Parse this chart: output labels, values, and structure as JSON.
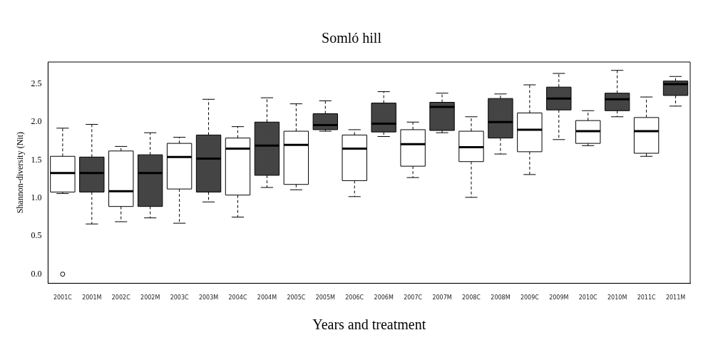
{
  "chart_data": {
    "type": "box",
    "title": "Somló hill",
    "xlabel": "Years and treatment",
    "ylabel": "Shannon-diversity (Nit)",
    "categories": [
      "2001C",
      "2001M",
      "2002C",
      "2002M",
      "2003C",
      "2003M",
      "2004C",
      "2004M",
      "2005C",
      "2005M",
      "2006C",
      "2006M",
      "2007C",
      "2007M",
      "2008C",
      "2008M",
      "2009C",
      "2009M",
      "2010C",
      "2010M",
      "2011C",
      "2011M"
    ],
    "colors": [
      "#ffffff",
      "#444444",
      "#ffffff",
      "#444444",
      "#ffffff",
      "#444444",
      "#ffffff",
      "#444444",
      "#ffffff",
      "#444444",
      "#ffffff",
      "#444444",
      "#ffffff",
      "#444444",
      "#ffffff",
      "#444444",
      "#ffffff",
      "#444444",
      "#ffffff",
      "#444444",
      "#ffffff",
      "#444444"
    ],
    "boxes": [
      {
        "low": 1.06,
        "q1": 1.08,
        "median": 1.33,
        "q3": 1.55,
        "high": 1.92,
        "outliers": [
          0.0
        ]
      },
      {
        "low": 0.66,
        "q1": 1.08,
        "median": 1.33,
        "q3": 1.54,
        "high": 1.97
      },
      {
        "low": 0.69,
        "q1": 0.89,
        "median": 1.09,
        "q3": 1.62,
        "high": 1.68
      },
      {
        "low": 0.74,
        "q1": 0.89,
        "median": 1.33,
        "q3": 1.57,
        "high": 1.86
      },
      {
        "low": 0.67,
        "q1": 1.12,
        "median": 1.54,
        "q3": 1.72,
        "high": 1.8
      },
      {
        "low": 0.95,
        "q1": 1.08,
        "median": 1.52,
        "q3": 1.83,
        "high": 2.3
      },
      {
        "low": 0.75,
        "q1": 1.04,
        "median": 1.65,
        "q3": 1.79,
        "high": 1.94
      },
      {
        "low": 1.14,
        "q1": 1.3,
        "median": 1.69,
        "q3": 2.0,
        "high": 2.32
      },
      {
        "low": 1.11,
        "q1": 1.18,
        "median": 1.7,
        "q3": 1.88,
        "high": 2.24
      },
      {
        "low": 1.88,
        "q1": 1.9,
        "median": 1.96,
        "q3": 2.11,
        "high": 2.28
      },
      {
        "low": 1.02,
        "q1": 1.23,
        "median": 1.65,
        "q3": 1.83,
        "high": 1.9
      },
      {
        "low": 1.81,
        "q1": 1.87,
        "median": 1.98,
        "q3": 2.25,
        "high": 2.4
      },
      {
        "low": 1.27,
        "q1": 1.42,
        "median": 1.71,
        "q3": 1.9,
        "high": 2.0
      },
      {
        "low": 1.86,
        "q1": 1.89,
        "median": 2.2,
        "q3": 2.26,
        "high": 2.38
      },
      {
        "low": 1.01,
        "q1": 1.48,
        "median": 1.67,
        "q3": 1.88,
        "high": 2.07
      },
      {
        "low": 1.58,
        "q1": 1.79,
        "median": 2.0,
        "q3": 2.31,
        "high": 2.37
      },
      {
        "low": 1.31,
        "q1": 1.61,
        "median": 1.9,
        "q3": 2.12,
        "high": 2.49
      },
      {
        "low": 1.77,
        "q1": 2.16,
        "median": 2.31,
        "q3": 2.46,
        "high": 2.64
      },
      {
        "low": 1.69,
        "q1": 1.72,
        "median": 1.88,
        "q3": 2.02,
        "high": 2.15
      },
      {
        "low": 2.07,
        "q1": 2.15,
        "median": 2.3,
        "q3": 2.38,
        "high": 2.68
      },
      {
        "low": 1.55,
        "q1": 1.59,
        "median": 1.88,
        "q3": 2.06,
        "high": 2.33
      },
      {
        "low": 2.21,
        "q1": 2.35,
        "median": 2.5,
        "q3": 2.54,
        "high": 2.6
      }
    ],
    "ylim": [
      -0.12,
      2.79
    ],
    "yticks": [
      {
        "value": 0,
        "label": "0.0"
      },
      {
        "value": 0.5,
        "label": "0.5"
      },
      {
        "value": 1,
        "label": "1.0"
      },
      {
        "value": 1.5,
        "label": "1.5"
      },
      {
        "value": 2,
        "label": "2.0"
      },
      {
        "value": 2.5,
        "label": "2.5"
      }
    ]
  }
}
